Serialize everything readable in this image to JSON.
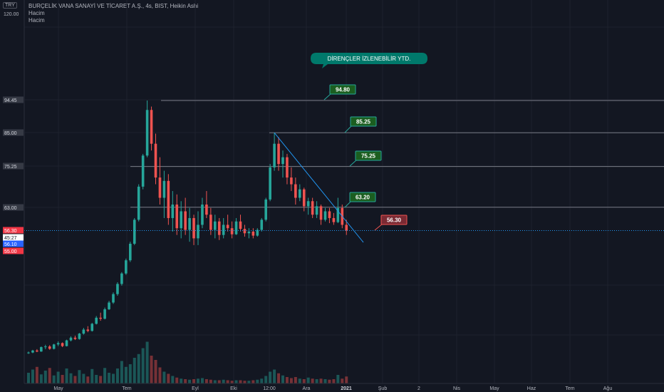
{
  "header": {
    "title": "BURÇELİK VANA SANAYİ VE TİCARET A.Ş., 4s, BIST, Heikin Ashi",
    "volume_label_1": "Hacim",
    "volume_label_2": "Hacim",
    "currency": "TRY"
  },
  "colors": {
    "background": "#131722",
    "up": "#26a69a",
    "down": "#ef5350",
    "level_line": "#787b86",
    "trendline": "#2196f3",
    "label_green_bg": "#1b5e20",
    "label_green_border": "#26a69a",
    "label_red_bg": "#7a2a33",
    "label_red_border": "#ef5350",
    "callout_bg": "#00796b",
    "current_price": "#f23645",
    "countdown": "#ffffff",
    "blue_price": "#2962ff"
  },
  "chart_data": {
    "type": "candlestick",
    "y_axis": {
      "top_label": "120.00",
      "tick_labels": [
        "94.45",
        "85.00",
        "75.25",
        "63.00",
        "56.30",
        "45:27",
        "56.10",
        "55.00"
      ]
    },
    "x_axis": {
      "tick_labels": [
        "May",
        "Tem",
        "Eyl",
        "Eki",
        "12:00",
        "Ara",
        "2021",
        "Şub",
        "2",
        "Nis",
        "May",
        "Haz",
        "Tem",
        "Ağu"
      ]
    },
    "annotation": "DİRENÇLER İZLENEBİLİR YTD.",
    "levels": [
      {
        "label": "94.80",
        "value": 94.8,
        "style": "green"
      },
      {
        "label": "85.25",
        "value": 85.25,
        "style": "green"
      },
      {
        "label": "75.25",
        "value": 75.25,
        "style": "green"
      },
      {
        "label": "63.20",
        "value": 63.2,
        "style": "green"
      },
      {
        "label": "56.30",
        "value": 56.3,
        "style": "red"
      }
    ],
    "price_series": [
      [
        0,
        20,
        20.5,
        19.8,
        20.2
      ],
      [
        1,
        20.2,
        21,
        20,
        20.8
      ],
      [
        2,
        20.8,
        21.2,
        20.3,
        20.5
      ],
      [
        3,
        20.5,
        22,
        20.4,
        21.8
      ],
      [
        4,
        21.8,
        22.5,
        21.2,
        22
      ],
      [
        5,
        22,
        22.4,
        21,
        21.3
      ],
      [
        6,
        21.3,
        22.8,
        21.1,
        22.6
      ],
      [
        7,
        22.6,
        23.5,
        22.1,
        23
      ],
      [
        8,
        23,
        23.2,
        21.8,
        22.1
      ],
      [
        9,
        22.1,
        24,
        22,
        23.8
      ],
      [
        10,
        23.8,
        25,
        23.5,
        24.6
      ],
      [
        11,
        24.6,
        25.2,
        23.9,
        24.2
      ],
      [
        12,
        24.2,
        26,
        24,
        25.8
      ],
      [
        13,
        25.8,
        27.5,
        25.5,
        27
      ],
      [
        14,
        27,
        28,
        26.2,
        26.6
      ],
      [
        15,
        26.6,
        29,
        26.4,
        28.7
      ],
      [
        16,
        28.7,
        31,
        28.5,
        30.5
      ],
      [
        17,
        30.5,
        32,
        29.6,
        30.2
      ],
      [
        18,
        30.2,
        33.5,
        30,
        33
      ],
      [
        19,
        33,
        35.5,
        32.8,
        35
      ],
      [
        20,
        35,
        38,
        34.6,
        37.5
      ],
      [
        21,
        37.5,
        41,
        37,
        40.5
      ],
      [
        22,
        40.5,
        44,
        40,
        43.6
      ],
      [
        23,
        43.6,
        48,
        43.2,
        47.5
      ],
      [
        24,
        47.5,
        53,
        47,
        52.4
      ],
      [
        25,
        52.4,
        60,
        52,
        59.5
      ],
      [
        26,
        59.5,
        70,
        59,
        69.3
      ],
      [
        27,
        69.3,
        79,
        68.5,
        78.5
      ],
      [
        28,
        78.5,
        94.8,
        78,
        92
      ],
      [
        29,
        92,
        93,
        80,
        82
      ],
      [
        30,
        82,
        85,
        70,
        72
      ],
      [
        31,
        72,
        78,
        64,
        66
      ],
      [
        32,
        66,
        74,
        60,
        71
      ],
      [
        33,
        71,
        73,
        58,
        60
      ],
      [
        34,
        60,
        68,
        56,
        64
      ],
      [
        35,
        64,
        67,
        55,
        57
      ],
      [
        36,
        57,
        65,
        54,
        62
      ],
      [
        37,
        62,
        66,
        55,
        56.5
      ],
      [
        38,
        56.5,
        63,
        53,
        60
      ],
      [
        39,
        60,
        61,
        52,
        54
      ],
      [
        40,
        54,
        62,
        52,
        58
      ],
      [
        41,
        58,
        66,
        57,
        64
      ],
      [
        42,
        64,
        68,
        60,
        61
      ],
      [
        43,
        61,
        63,
        55,
        56.5
      ],
      [
        44,
        56.5,
        61,
        54,
        59
      ],
      [
        45,
        59,
        60,
        53.5,
        55
      ],
      [
        46,
        55,
        60,
        54,
        58
      ],
      [
        47,
        58,
        61,
        56,
        57
      ],
      [
        48,
        57,
        59,
        54,
        55.2
      ],
      [
        49,
        55.2,
        60,
        55,
        59
      ],
      [
        50,
        59,
        61,
        56,
        56.8
      ],
      [
        51,
        56.8,
        58,
        54.5,
        55.5
      ],
      [
        52,
        55.5,
        57,
        54,
        56
      ],
      [
        53,
        56,
        57,
        54,
        54.8
      ],
      [
        54,
        54.8,
        57,
        54.5,
        56.5
      ],
      [
        55,
        56.5,
        60,
        56,
        59.5
      ],
      [
        56,
        59.5,
        66,
        59,
        65.5
      ],
      [
        57,
        65.5,
        76,
        65,
        75
      ],
      [
        58,
        75,
        85.25,
        74,
        82
      ],
      [
        59,
        82,
        84,
        74,
        76
      ],
      [
        60,
        76,
        80,
        72,
        78
      ],
      [
        61,
        78,
        79,
        70,
        72
      ],
      [
        62,
        72,
        75,
        68,
        70
      ],
      [
        63,
        70,
        72,
        64,
        66
      ],
      [
        64,
        66,
        70,
        65,
        68.5
      ],
      [
        65,
        68.5,
        69,
        62,
        63.5
      ],
      [
        66,
        63.5,
        66,
        61,
        65
      ],
      [
        67,
        65,
        66,
        60,
        61
      ],
      [
        68,
        61,
        65,
        60,
        63.5
      ],
      [
        69,
        63.5,
        64,
        58,
        59.5
      ],
      [
        70,
        59.5,
        63,
        59,
        62
      ],
      [
        71,
        62,
        63,
        58.5,
        60
      ],
      [
        72,
        60,
        61.5,
        58,
        58.8
      ],
      [
        73,
        58.8,
        66,
        58.5,
        63
      ],
      [
        74,
        63,
        64,
        57,
        58
      ],
      [
        75,
        58,
        59.5,
        55,
        56.3
      ]
    ],
    "volume_series": [
      2.0,
      2.6,
      3.1,
      1.7,
      2.4,
      2.9,
      1.5,
      2.2,
      1.6,
      2.8,
      1.9,
      1.4,
      2.5,
      1.8,
      1.3,
      2.7,
      1.6,
      1.4,
      2.9,
      2.0,
      1.8,
      2.8,
      4.2,
      3.1,
      3.6,
      4.8,
      5.5,
      6.6,
      7.8,
      5.2,
      4.4,
      3.0,
      2.2,
      1.8,
      1.4,
      1.1,
      0.9,
      0.8,
      0.7,
      0.8,
      0.9,
      1.0,
      0.8,
      0.7,
      0.6,
      0.6,
      0.7,
      0.6,
      0.5,
      0.6,
      0.6,
      0.5,
      0.5,
      0.6,
      0.7,
      0.9,
      1.4,
      2.2,
      2.6,
      1.9,
      1.5,
      1.2,
      1.0,
      1.2,
      0.9,
      0.8,
      1.1,
      0.9,
      0.8,
      0.9,
      0.8,
      0.7,
      0.8,
      1.6,
      0.9,
      1.3
    ]
  }
}
